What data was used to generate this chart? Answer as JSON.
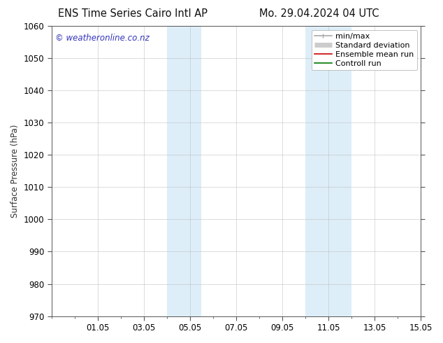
{
  "title_left": "ENS Time Series Cairo Intl AP",
  "title_right": "Mo. 29.04.2024 04 UTC",
  "ylabel": "Surface Pressure (hPa)",
  "ylim": [
    970,
    1060
  ],
  "yticks": [
    970,
    980,
    990,
    1000,
    1010,
    1020,
    1030,
    1040,
    1050,
    1060
  ],
  "xlim": [
    0,
    16
  ],
  "xtick_labels": [
    "01.05",
    "03.05",
    "05.05",
    "07.05",
    "09.05",
    "11.05",
    "13.05",
    "15.05"
  ],
  "xtick_positions": [
    2,
    4,
    6,
    8,
    10,
    12,
    14,
    16
  ],
  "shaded_bands": [
    {
      "x_start": 5.0,
      "x_end": 6.5,
      "color": "#ddeef8"
    },
    {
      "x_start": 11.0,
      "x_end": 13.0,
      "color": "#ddeef8"
    }
  ],
  "watermark": "© weatheronline.co.nz",
  "watermark_color": "#3333bb",
  "bg_color": "#ffffff",
  "plot_bg_color": "#ffffff",
  "grid_color": "#bbbbbb",
  "spine_color": "#555555",
  "font_size": 8.5,
  "title_font_size": 10.5,
  "legend_font_size": 8,
  "legend_items": [
    {
      "label": "min/max",
      "color": "#aaaaaa",
      "lw": 1.2
    },
    {
      "label": "Standard deviation",
      "color": "#cccccc",
      "lw": 5
    },
    {
      "label": "Ensemble mean run",
      "color": "#cc0000",
      "lw": 1.2
    },
    {
      "label": "Controll run",
      "color": "#007700",
      "lw": 1.2
    }
  ]
}
